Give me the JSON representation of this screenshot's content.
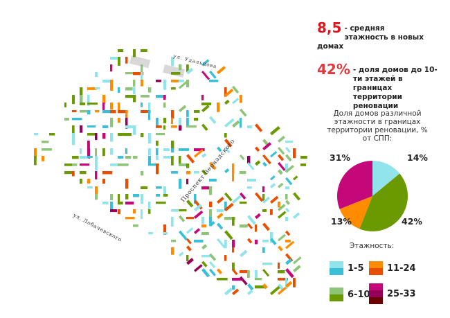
{
  "stats": [
    {
      "value": "8,5",
      "text": "- средняя этажность в новых домах"
    },
    {
      "value": "42%",
      "text": "- доля домов до 10-ти этажей в границах территории реновации"
    }
  ],
  "streets": {
    "udaltsova": "ул. Удальцова",
    "vernadskogo": "Проспект Вернадского",
    "lobachevskogo": "ул. Лобачевского"
  },
  "chart_data": {
    "type": "pie",
    "title": "Доля домов различной этажности в границах территории реновации, % от СПП:",
    "categories": [
      "1-5",
      "6-10",
      "11-24",
      "25-33"
    ],
    "values": [
      14,
      42,
      13,
      31
    ],
    "labels": [
      "14%",
      "42%",
      "13%",
      "31%"
    ],
    "colors": [
      "#91e4ec",
      "#6a9a00",
      "#ff8c00",
      "#c4087a"
    ]
  },
  "legend": {
    "title": "Этажность:",
    "items": [
      {
        "label": "1-5",
        "colors": [
          "#91e4ec",
          "#3bbfd6"
        ]
      },
      {
        "label": "11-24",
        "colors": [
          "#ff8c00",
          "#e84e00"
        ]
      },
      {
        "label": "6-10",
        "colors": [
          "#8dc477",
          "#6a9a00"
        ]
      },
      {
        "label": "25-33",
        "colors": [
          "#c4087a",
          "#95005a",
          "#6a0000"
        ]
      }
    ]
  }
}
